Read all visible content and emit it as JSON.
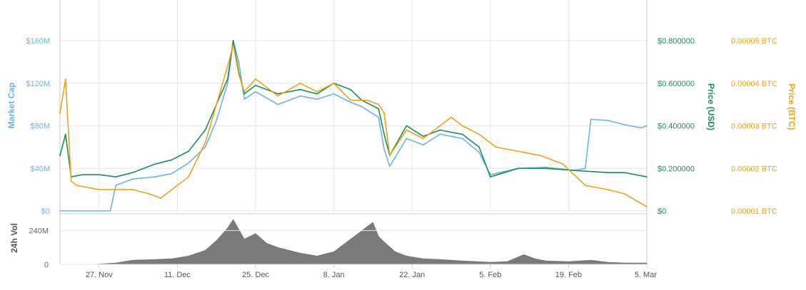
{
  "chart_data": {
    "type": "line",
    "title": "",
    "colors": {
      "market_cap": "#6db3e3",
      "price_usd": "#1b8e5a",
      "price_btc": "#f0a11c",
      "volume": "#7a7a7a",
      "grid": "#e6e6e6"
    },
    "x_axis": {
      "ticks": [
        "27. Nov",
        "11. Dec",
        "25. Dec",
        "8. Jan",
        "22. Jan",
        "5. Feb",
        "19. Feb",
        "5. Mar"
      ],
      "range": [
        "2017-11-20",
        "2018-03-05"
      ]
    },
    "axes": {
      "market_cap": {
        "title": "Market Cap",
        "ticks": [
          "$0",
          "$40M",
          "$80M",
          "$120M",
          "$160M"
        ],
        "range": [
          0,
          160000000
        ]
      },
      "price_usd": {
        "title": "Price (USD)",
        "ticks": [
          "$0",
          "$0.200000",
          "$0.400000",
          "$0.600000",
          "$0.800000"
        ],
        "range": [
          0,
          0.8
        ]
      },
      "price_btc": {
        "title": "Price (BTC)",
        "ticks": [
          "0.00001 BTC",
          "0.00002 BTC",
          "0.00003 BTC",
          "0.00004 BTC",
          "0.00005 BTC"
        ],
        "range": [
          1e-05,
          5e-05
        ]
      },
      "volume": {
        "title": "24h Vol",
        "ticks": [
          "0",
          "240M"
        ],
        "range": [
          0,
          360000000
        ]
      }
    },
    "series": [
      {
        "name": "Market Cap",
        "x": [
          "2017-11-20",
          "2017-11-26",
          "2017-11-29",
          "2017-11-30",
          "2017-12-03",
          "2017-12-07",
          "2017-12-10",
          "2017-12-13",
          "2017-12-16",
          "2017-12-18",
          "2017-12-20",
          "2017-12-21",
          "2017-12-22",
          "2017-12-23",
          "2017-12-25",
          "2017-12-29",
          "2018-01-02",
          "2018-01-05",
          "2018-01-08",
          "2018-01-11",
          "2018-01-13",
          "2018-01-16",
          "2018-01-17",
          "2018-01-18",
          "2018-01-21",
          "2018-01-24",
          "2018-01-27",
          "2018-01-31",
          "2018-02-03",
          "2018-02-05",
          "2018-02-10",
          "2018-02-15",
          "2018-02-20",
          "2018-02-22",
          "2018-02-23",
          "2018-02-26",
          "2018-03-01",
          "2018-03-04",
          "2018-03-05"
        ],
        "values": [
          0,
          0,
          0,
          24000000,
          30000000,
          32000000,
          35000000,
          45000000,
          60000000,
          85000000,
          120000000,
          160000000,
          140000000,
          105000000,
          112000000,
          100000000,
          108000000,
          105000000,
          110000000,
          102000000,
          98000000,
          88000000,
          58000000,
          42000000,
          68000000,
          62000000,
          72000000,
          68000000,
          55000000,
          34000000,
          40000000,
          41000000,
          38000000,
          40000000,
          86000000,
          85000000,
          81000000,
          78000000,
          80000000
        ]
      },
      {
        "name": "Price (USD)",
        "x": [
          "2017-11-20",
          "2017-11-21",
          "2017-11-22",
          "2017-11-24",
          "2017-11-27",
          "2017-11-30",
          "2017-12-03",
          "2017-12-07",
          "2017-12-10",
          "2017-12-13",
          "2017-12-16",
          "2017-12-18",
          "2017-12-20",
          "2017-12-21",
          "2017-12-22",
          "2017-12-23",
          "2017-12-25",
          "2017-12-29",
          "2018-01-02",
          "2018-01-05",
          "2018-01-08",
          "2018-01-11",
          "2018-01-13",
          "2018-01-16",
          "2018-01-17",
          "2018-01-18",
          "2018-01-21",
          "2018-01-24",
          "2018-01-27",
          "2018-01-31",
          "2018-02-03",
          "2018-02-05",
          "2018-02-10",
          "2018-02-15",
          "2018-02-20",
          "2018-02-26",
          "2018-03-01",
          "2018-03-05"
        ],
        "values": [
          0.26,
          0.36,
          0.16,
          0.17,
          0.17,
          0.16,
          0.18,
          0.22,
          0.24,
          0.28,
          0.38,
          0.5,
          0.62,
          0.8,
          0.65,
          0.55,
          0.59,
          0.55,
          0.57,
          0.55,
          0.6,
          0.57,
          0.52,
          0.48,
          0.36,
          0.26,
          0.4,
          0.35,
          0.38,
          0.36,
          0.3,
          0.16,
          0.2,
          0.2,
          0.19,
          0.18,
          0.18,
          0.16
        ]
      },
      {
        "name": "Price (BTC)",
        "x": [
          "2017-11-20",
          "2017-11-21",
          "2017-11-22",
          "2017-11-23",
          "2017-11-27",
          "2017-11-30",
          "2017-12-03",
          "2017-12-06",
          "2017-12-08",
          "2017-12-10",
          "2017-12-13",
          "2017-12-16",
          "2017-12-18",
          "2017-12-20",
          "2017-12-21",
          "2017-12-22",
          "2017-12-23",
          "2017-12-25",
          "2017-12-29",
          "2018-01-02",
          "2018-01-05",
          "2018-01-08",
          "2018-01-11",
          "2018-01-14",
          "2018-01-16",
          "2018-01-17",
          "2018-01-18",
          "2018-01-21",
          "2018-01-24",
          "2018-01-27",
          "2018-01-29",
          "2018-01-31",
          "2018-02-03",
          "2018-02-06",
          "2018-02-10",
          "2018-02-14",
          "2018-02-18",
          "2018-02-22",
          "2018-02-26",
          "2018-03-01",
          "2018-03-05"
        ],
        "values": [
          3.3e-05,
          4.1e-05,
          1.7e-05,
          1.6e-05,
          1.5e-05,
          1.5e-05,
          1.5e-05,
          1.4e-05,
          1.3e-05,
          1.5e-05,
          1.8e-05,
          2.6e-05,
          3.5e-05,
          4.4e-05,
          4.9e-05,
          4.2e-05,
          3.8e-05,
          4.1e-05,
          3.7e-05,
          4e-05,
          3.8e-05,
          4e-05,
          3.6e-05,
          3.6e-05,
          3.5e-05,
          3.3e-05,
          2.3e-05,
          2.9e-05,
          2.7e-05,
          3e-05,
          3.2e-05,
          3e-05,
          2.8e-05,
          2.5e-05,
          2.4e-05,
          2.3e-05,
          2.1e-05,
          1.6e-05,
          1.5e-05,
          1.4e-05,
          1.1e-05
        ]
      },
      {
        "name": "24h Vol",
        "x": [
          "2017-11-20",
          "2017-11-26",
          "2017-11-30",
          "2017-12-03",
          "2017-12-07",
          "2017-12-10",
          "2017-12-13",
          "2017-12-16",
          "2017-12-18",
          "2017-12-20",
          "2017-12-21",
          "2017-12-23",
          "2017-12-25",
          "2017-12-27",
          "2017-12-29",
          "2018-01-02",
          "2018-01-05",
          "2018-01-08",
          "2018-01-11",
          "2018-01-13",
          "2018-01-15",
          "2018-01-16",
          "2018-01-17",
          "2018-01-19",
          "2018-01-21",
          "2018-01-24",
          "2018-01-27",
          "2018-01-31",
          "2018-02-05",
          "2018-02-08",
          "2018-02-11",
          "2018-02-13",
          "2018-02-15",
          "2018-02-19",
          "2018-02-23",
          "2018-02-26",
          "2018-03-01",
          "2018-03-05"
        ],
        "values": [
          0,
          0,
          10000000,
          30000000,
          35000000,
          40000000,
          60000000,
          100000000,
          170000000,
          260000000,
          320000000,
          180000000,
          220000000,
          150000000,
          120000000,
          80000000,
          60000000,
          90000000,
          180000000,
          240000000,
          300000000,
          200000000,
          160000000,
          90000000,
          60000000,
          40000000,
          35000000,
          25000000,
          15000000,
          20000000,
          70000000,
          40000000,
          25000000,
          20000000,
          30000000,
          15000000,
          10000000,
          10000000
        ]
      }
    ]
  }
}
